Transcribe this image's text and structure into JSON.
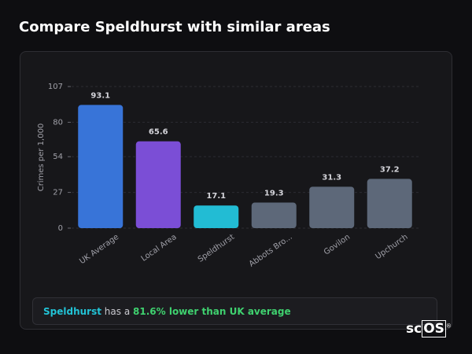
{
  "header": {
    "title": "Compare Speldhurst with similar areas"
  },
  "chart_data": {
    "type": "bar",
    "y_label": "Crimes per 1,000",
    "categories": [
      "UK Average",
      "Local Area",
      "Speldhurst",
      "Abbots Bro...",
      "Govilon",
      "Upchurch"
    ],
    "values": [
      93.1,
      65.6,
      17.1,
      19.3,
      31.3,
      37.2
    ],
    "colors": [
      "#3874d8",
      "#7b4ed6",
      "#22bcd4",
      "#5d6879",
      "#5d6879",
      "#5d6879"
    ],
    "ylim": [
      0,
      107
    ],
    "yticks": [
      0,
      27,
      54,
      80,
      107
    ],
    "grid": true
  },
  "summary": {
    "area": "Speldhurst",
    "connector": "has a",
    "highlight": "81.6% lower than UK average"
  },
  "logo": {
    "left": "sc",
    "right": "OS",
    "mark": "®"
  }
}
